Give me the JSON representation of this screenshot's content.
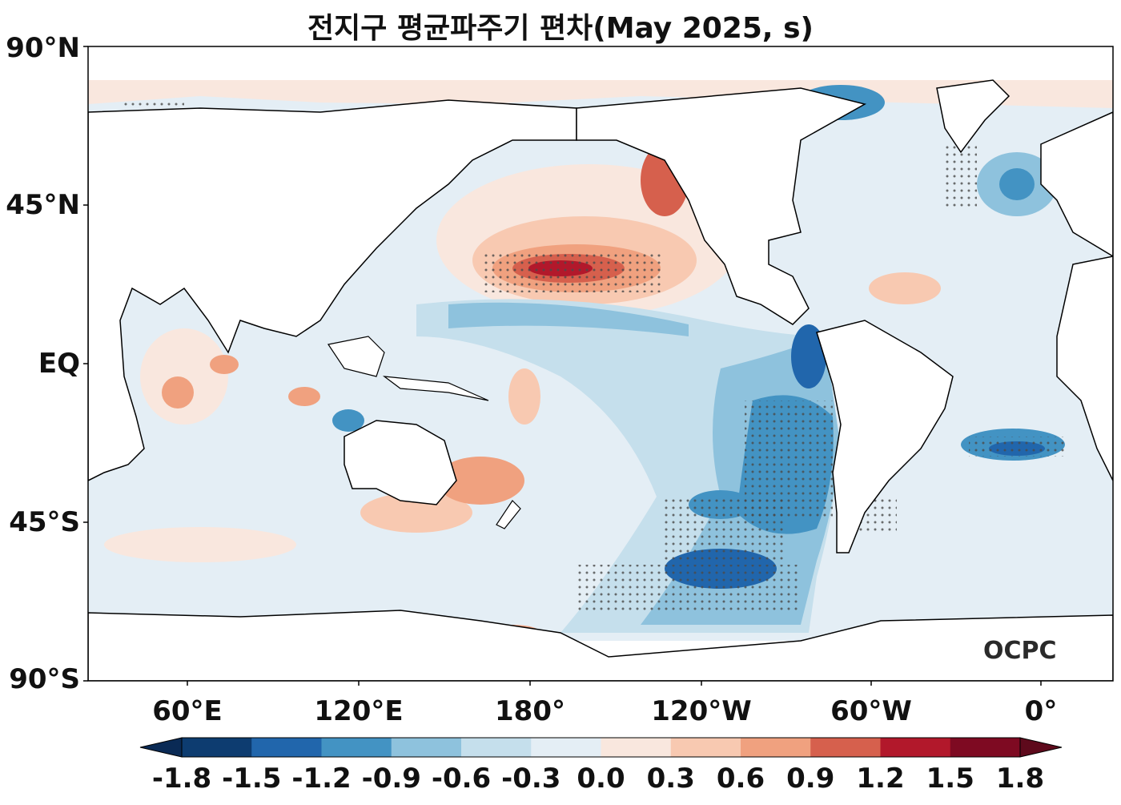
{
  "title": "전지구 평균파주기 편차(May 2025, s)",
  "lat_labels": [
    "90°N",
    "45°N",
    "EQ",
    "45°S",
    "90°S"
  ],
  "lon_labels": [
    "60°E",
    "120°E",
    "180°",
    "120°W",
    "60°W",
    "0°"
  ],
  "colorbar": {
    "labels": [
      "-1.8",
      "-1.5",
      "-1.2",
      "-0.9",
      "-0.6",
      "-0.3",
      "0.0",
      "0.3",
      "0.6",
      "0.9",
      "1.2",
      "1.5",
      "1.8"
    ],
    "colors": [
      "#0d3c70",
      "#2166ac",
      "#4393c3",
      "#8ec2dd",
      "#c5dfec",
      "#e4eef5",
      "#f9e7de",
      "#f8c9b1",
      "#f0a17f",
      "#d6604d",
      "#b2182b",
      "#7e0a22"
    ],
    "under_color": "#0a2a55",
    "over_color": "#5e0a1c"
  },
  "logo": "OCPC",
  "colors": {
    "land": "#ffffff",
    "coast": "#000000",
    "stipple": "#4a4a4a"
  }
}
